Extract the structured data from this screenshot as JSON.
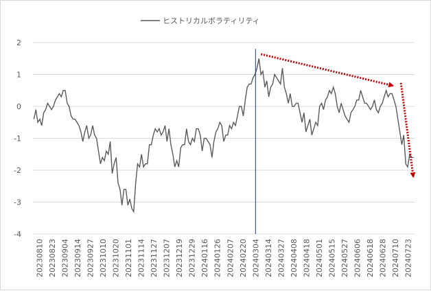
{
  "chart_data": {
    "type": "line",
    "title": "",
    "legend": {
      "entries": [
        "ヒストリカルボラティリティ"
      ],
      "placement": "top-center"
    },
    "x_tick_labels": [
      "20230810",
      "20230823",
      "20230904",
      "20230914",
      "20230927",
      "20231010",
      "20231020",
      "20231101",
      "20231114",
      "20231127",
      "20231207",
      "20231219",
      "20231229",
      "20240116",
      "20240126",
      "20240207",
      "20240220",
      "20240304",
      "20240314",
      "20240327",
      "20240408",
      "20240418",
      "20240501",
      "20240515",
      "20240527",
      "20240606",
      "20240618",
      "20240628",
      "20240710",
      "20240723"
    ],
    "y_ticks": [
      "2",
      "1",
      "0",
      "-1",
      "-2",
      "-3",
      "-4"
    ],
    "ylim": [
      -4,
      2
    ],
    "grid": "horizontal",
    "series": [
      {
        "name": "ヒストリカルボラティリティ",
        "color": "#595959",
        "values": [
          -0.4,
          -0.1,
          -0.5,
          -0.4,
          -0.6,
          -0.2,
          -0.1,
          0.1,
          0.0,
          -0.1,
          0.0,
          0.2,
          0.3,
          0.4,
          0.3,
          0.5,
          0.5,
          0.1,
          0.0,
          -0.3,
          -0.4,
          -0.4,
          -0.5,
          -0.6,
          -0.8,
          -1.1,
          -0.8,
          -0.6,
          -1.0,
          -0.9,
          -0.6,
          -0.9,
          -1.0,
          -1.4,
          -1.8,
          -1.6,
          -1.7,
          -1.4,
          -1.5,
          -1.1,
          -2.1,
          -1.8,
          -1.6,
          -2.4,
          -2.6,
          -3.1,
          -2.6,
          -2.6,
          -3.1,
          -2.9,
          -3.2,
          -3.3,
          -2.4,
          -1.8,
          -1.9,
          -1.5,
          -1.9,
          -1.8,
          -1.8,
          -1.2,
          -1.2,
          -0.9,
          -0.7,
          -0.8,
          -0.7,
          -0.9,
          -0.8,
          -0.6,
          -1.1,
          -0.7,
          -1.2,
          -1.5,
          -1.9,
          -1.7,
          -1.9,
          -1.3,
          -1.2,
          -1.2,
          -0.7,
          -1.1,
          -1.2,
          -1.0,
          -1.1,
          -0.7,
          -0.7,
          -0.9,
          -1.4,
          -1.0,
          -1.0,
          -1.1,
          -1.2,
          -1.6,
          -1.1,
          -0.8,
          -0.7,
          -0.5,
          -0.6,
          -1.1,
          -0.9,
          -0.9,
          -0.6,
          -0.7,
          -0.5,
          -0.6,
          -0.3,
          0.0,
          0.0,
          -0.3,
          0.2,
          0.6,
          0.7,
          0.7,
          0.9,
          1.0,
          1.2,
          1.5,
          1.0,
          1.1,
          0.6,
          0.8,
          0.3,
          0.6,
          0.7,
          1.0,
          0.9,
          0.8,
          0.7,
          1.2,
          0.6,
          0.4,
          0.1,
          0.4,
          0.0,
          0.0,
          0.1,
          0.1,
          -0.2,
          -0.5,
          -0.2,
          -0.8,
          -0.6,
          -0.4,
          -0.9,
          -0.7,
          -0.5,
          -0.6,
          0.0,
          0.1,
          -0.1,
          0.2,
          0.3,
          0.5,
          0.4,
          0.6,
          0.4,
          0.0,
          -0.2,
          0.1,
          -0.1,
          -0.3,
          -0.4,
          -0.5,
          -0.2,
          -0.1,
          0.0,
          0.2,
          0.2,
          0.5,
          0.3,
          0.1,
          0.1,
          0.0,
          -0.1,
          0.0,
          0.2,
          -0.1,
          -0.2,
          0.0,
          0.1,
          0.3,
          0.5,
          0.3,
          0.4,
          0.4,
          0.2,
          0.0,
          -0.4,
          -0.8,
          -1.2,
          -0.9,
          -1.8,
          -1.9,
          -1.5,
          -1.6,
          -1.6
        ]
      }
    ],
    "annotations": [
      {
        "type": "vertical-line",
        "at": "20240304",
        "color": "#1f3864"
      },
      {
        "type": "dotted-arrow",
        "color": "#c00000",
        "from": [
          "20240304",
          1.55
        ],
        "to": [
          "20240710",
          0.65
        ]
      },
      {
        "type": "dotted-arrow",
        "color": "#c00000",
        "from": [
          "20240710",
          0.65
        ],
        "to": [
          "end",
          -2.2
        ]
      }
    ]
  }
}
